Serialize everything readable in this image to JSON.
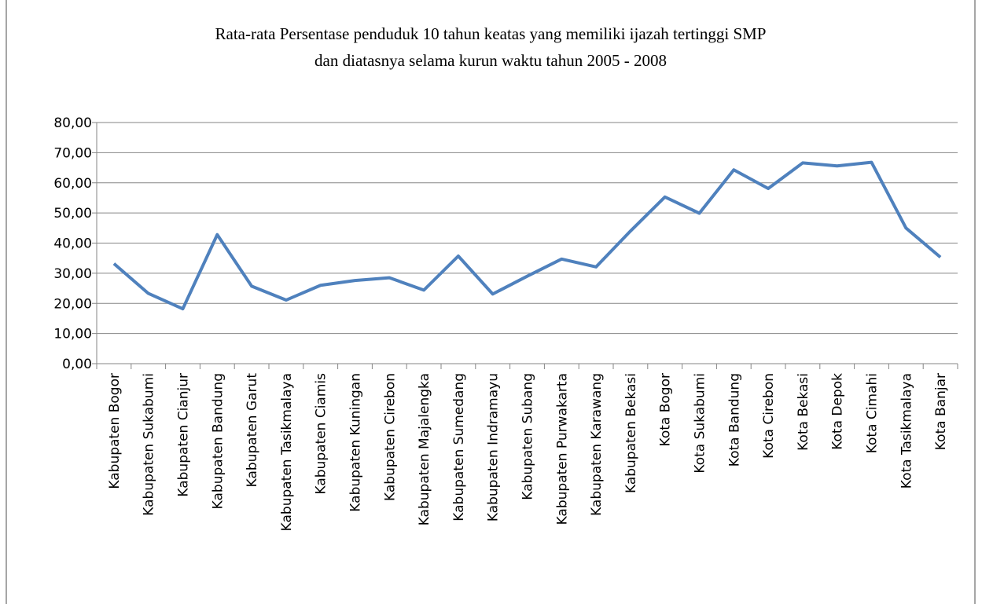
{
  "chart_data": {
    "type": "line",
    "title": [
      "Rata-rata Persentase penduduk 10 tahun keatas yang memiliki ijazah tertinggi SMP",
      "dan diatasnya selama kurun waktu tahun 2005 - 2008"
    ],
    "categories": [
      "Kabupaten Bogor",
      "Kabupaten Sukabumi",
      "Kabupaten Cianjur",
      "Kabupaten Bandung",
      "Kabupaten Garut",
      "Kabupaten Tasikmalaya",
      "Kabupaten Ciamis",
      "Kabupaten Kuningan",
      "Kabupaten Cirebon",
      "Kabupaten Majalengka",
      "Kabupaten Sumedang",
      "Kabupaten Indramayu",
      "Kabupaten Subang",
      "Kabupaten Purwakarta",
      "Kabupaten Karawang",
      "Kabupaten Bekasi",
      "Kota Bogor",
      "Kota Sukabumi",
      "Kota Bandung",
      "Kota Cirebon",
      "Kota Bekasi",
      "Kota Depok",
      "Kota Cimahi",
      "Kota Tasikmalaya",
      "Kota Banjar"
    ],
    "values": [
      33.2,
      23.3,
      18.2,
      42.8,
      25.7,
      21.1,
      26.0,
      27.6,
      28.5,
      24.4,
      35.7,
      23.1,
      29.0,
      34.7,
      32.1,
      44.0,
      55.3,
      49.9,
      64.3,
      58.1,
      66.6,
      65.6,
      66.8,
      45.0,
      35.3
    ],
    "color": "#4f81bd",
    "ylim": [
      0,
      80
    ],
    "yticks": [
      {
        "value": 0,
        "label": "0,00"
      },
      {
        "value": 10,
        "label": "10,00"
      },
      {
        "value": 20,
        "label": "20,00"
      },
      {
        "value": 30,
        "label": "30,00"
      },
      {
        "value": 40,
        "label": "40,00"
      },
      {
        "value": 50,
        "label": "50,00"
      },
      {
        "value": 60,
        "label": "60,00"
      },
      {
        "value": 70,
        "label": "70,00"
      },
      {
        "value": 80,
        "label": "80,00"
      }
    ],
    "grid": true
  }
}
